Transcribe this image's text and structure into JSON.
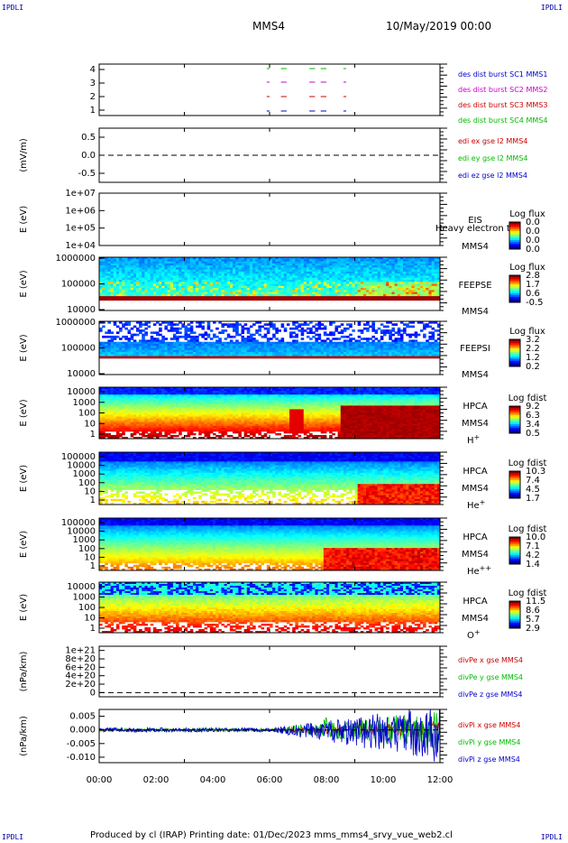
{
  "header": {
    "corner_left_top": "IPDLI",
    "corner_right_top": "IPDLI",
    "corner_left_bottom": "IPDLI",
    "corner_right_bottom": "IPDLI",
    "spacecraft": "MMS4",
    "date": "10/May/2019 00:00"
  },
  "footer": {
    "text": "Produced by cl (IRAP)   Printing date: 01/Dec/2023   mms_mms4_srvy_vue_web2.cl"
  },
  "colors": {
    "frame": "#000000",
    "blue": "#0000cc",
    "magenta": "#cc00cc",
    "red": "#cc0000",
    "green": "#00bb00"
  },
  "chart_data": [
    {
      "type": "scatter",
      "panel": "burst",
      "yticks": [
        "4",
        "3",
        "2",
        "1"
      ],
      "legend": [
        {
          "label": "des dist burst SC1 MMS1",
          "color": "#0000cc"
        },
        {
          "label": "des dist burst SC2 MMS2",
          "color": "#cc00cc"
        },
        {
          "label": "des dist burst SC3 MMS3",
          "color": "#cc0000"
        },
        {
          "label": "des dist burst SC4 MMS4",
          "color": "#00bb00"
        }
      ],
      "segments_hours": [
        [
          5.9,
          6.0
        ],
        [
          6.4,
          6.6
        ],
        [
          7.4,
          7.6
        ],
        [
          7.8,
          8.0
        ],
        [
          8.6,
          8.7
        ]
      ]
    },
    {
      "type": "line",
      "panel": "edi",
      "ylabel": "(mV/m)",
      "yticks": [
        "0.5",
        "0.0",
        "-0.5"
      ],
      "ylim": [
        -0.75,
        0.75
      ],
      "legend": [
        {
          "label": "edi ex gse l2 MMS4",
          "color": "#cc0000"
        },
        {
          "label": "edi ey gse l2 MMS4",
          "color": "#00bb00"
        },
        {
          "label": "edi ez gse l2 MMS4",
          "color": "#0000cc"
        }
      ]
    },
    {
      "type": "heatmap",
      "panel": "eis",
      "ylabel": "E (eV)",
      "yticks": [
        "1e+07",
        "1e+06",
        "1e+05",
        "1e+04"
      ],
      "instrument": "EIS",
      "overlap_label": "Heavy electron to",
      "spacecraft": "MMS4",
      "cbar_title": "Log flux",
      "cbar_ticks": [
        "0.0",
        "0.0",
        "0.0",
        "0.0"
      ]
    },
    {
      "type": "heatmap",
      "panel": "feepse",
      "ylabel": "E (eV)",
      "yticks": [
        "1000000",
        "100000",
        "10000"
      ],
      "instrument": "FEEPSE",
      "spacecraft": "MMS4",
      "cbar_title": "Log flux",
      "cbar_ticks": [
        "2.8",
        "1.7",
        "0.6",
        "-0.5"
      ]
    },
    {
      "type": "heatmap",
      "panel": "feepsi",
      "ylabel": "E (eV)",
      "yticks": [
        "1000000",
        "100000",
        "10000"
      ],
      "instrument": "FEEPSI",
      "spacecraft": "MMS4",
      "cbar_title": "Log flux",
      "cbar_ticks": [
        "3.2",
        "2.2",
        "1.2",
        "0.2"
      ]
    },
    {
      "type": "heatmap",
      "panel": "hpca_h",
      "ylabel": "E (eV)",
      "yticks": [
        "10000",
        "1000",
        "100",
        "10",
        "1"
      ],
      "instrument": "HPCA",
      "spacecraft": "MMS4",
      "species": "H",
      "species_sup": "+",
      "cbar_title": "Log fdist",
      "cbar_ticks": [
        "9.2",
        "6.3",
        "3.4",
        "0.5"
      ]
    },
    {
      "type": "heatmap",
      "panel": "hpca_he",
      "ylabel": "E (eV)",
      "yticks": [
        "100000",
        "10000",
        "1000",
        "100",
        "10",
        "1"
      ],
      "instrument": "HPCA",
      "spacecraft": "MMS4",
      "species": "He",
      "species_sup": "+",
      "cbar_title": "Log fdist",
      "cbar_ticks": [
        "10.3",
        "7.4",
        "4.5",
        "1.7"
      ]
    },
    {
      "type": "heatmap",
      "panel": "hpca_hepp",
      "ylabel": "E (eV)",
      "yticks": [
        "100000",
        "10000",
        "1000",
        "100",
        "10",
        "1"
      ],
      "instrument": "HPCA",
      "spacecraft": "MMS4",
      "species": "He",
      "species_sup": "++",
      "cbar_title": "Log fdist",
      "cbar_ticks": [
        "10.0",
        "7.1",
        "4.2",
        "1.4"
      ]
    },
    {
      "type": "heatmap",
      "panel": "hpca_o",
      "ylabel": "E (eV)",
      "yticks": [
        "10000",
        "1000",
        "100",
        "10",
        "1"
      ],
      "instrument": "HPCA",
      "spacecraft": "MMS4",
      "species": "O",
      "species_sup": "+",
      "cbar_title": "Log fdist",
      "cbar_ticks": [
        "11.5",
        "8.6",
        "5.7",
        "2.9"
      ]
    },
    {
      "type": "line",
      "panel": "divpe",
      "ylabel": "(nPa/km)",
      "yticks": [
        "1e+21",
        "8e+20",
        "6e+20",
        "4e+20",
        "2e+20",
        "0"
      ],
      "ylim": [
        -1e+20,
        1.1e+21
      ],
      "legend": [
        {
          "label": "divPe x gse MMS4",
          "color": "#cc0000"
        },
        {
          "label": "divPe y gse MMS4",
          "color": "#00bb00"
        },
        {
          "label": "divPe z gse MMS4",
          "color": "#0000cc"
        }
      ]
    },
    {
      "type": "line",
      "panel": "divpi",
      "ylabel": "(nPa/km)",
      "yticks": [
        "0.005",
        "0.000",
        "-0.005",
        "-0.010"
      ],
      "ylim": [
        -0.012,
        0.0075
      ],
      "legend": [
        {
          "label": "divPi x gse MMS4",
          "color": "#cc0000"
        },
        {
          "label": "divPi y gse MMS4",
          "color": "#00bb00"
        },
        {
          "label": "divPi z gse MMS4",
          "color": "#0000cc"
        }
      ],
      "xticks": [
        "00:00",
        "02:00",
        "04:00",
        "06:00",
        "08:00",
        "10:00",
        "12:00"
      ],
      "xlim_hours": [
        0,
        12
      ]
    }
  ]
}
